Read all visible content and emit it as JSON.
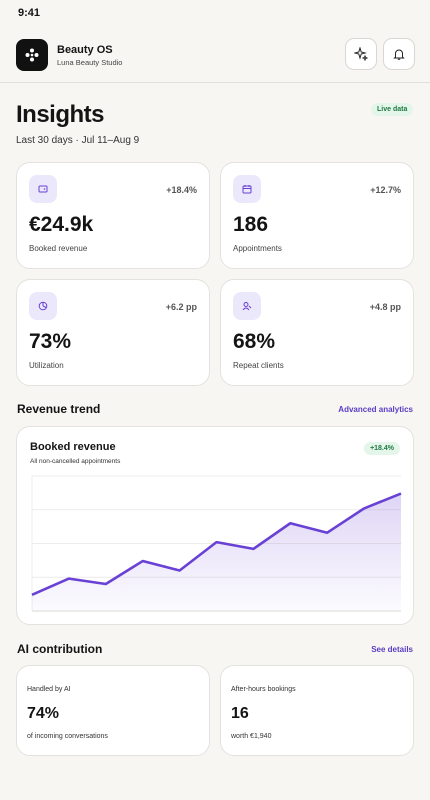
{
  "status_bar": {
    "time": "9:41"
  },
  "header": {
    "title": "Beauty OS",
    "subtitle": "Luna Beauty Studio"
  },
  "page": {
    "title": "Insights",
    "badge": "Live data",
    "period": "Last 30 days · Jul 11–Aug 9"
  },
  "kpis": [
    {
      "value": "€24.9k",
      "label": "Booked revenue",
      "change": "+18.4%"
    },
    {
      "value": "186",
      "label": "Appointments",
      "change": "+12.7%"
    },
    {
      "value": "73%",
      "label": "Utilization",
      "change": "+6.2 pp"
    },
    {
      "value": "68%",
      "label": "Repeat clients",
      "change": "+4.8 pp"
    }
  ],
  "revenue_trend": {
    "heading": "Revenue trend",
    "link": "Advanced analytics",
    "chart": {
      "type": "line",
      "title": "Booked revenue",
      "subtitle": "All non-cancelled appointments",
      "badge": "+18.4%",
      "values": [
        12,
        24,
        20,
        37,
        30,
        51,
        46,
        65,
        58,
        76,
        87
      ],
      "ylim": [
        0,
        100
      ],
      "color": "#6941d4",
      "grid": true
    }
  },
  "ai": {
    "heading": "AI contribution",
    "link": "See details",
    "cards": [
      {
        "label": "Handled by AI",
        "value": "74%",
        "note": "of incoming conversations"
      },
      {
        "label": "After-hours bookings",
        "value": "16",
        "note": "worth €1,940"
      }
    ]
  }
}
